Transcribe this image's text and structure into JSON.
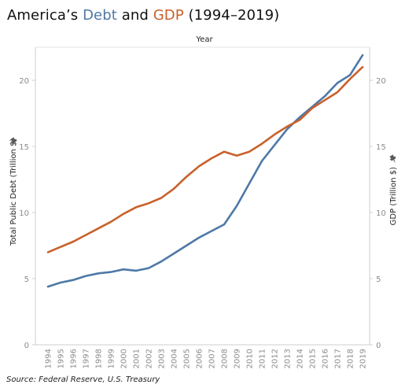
{
  "header": {
    "title_prefix": "America’s ",
    "title_debt": "Debt",
    "title_and": " and ",
    "title_gdp": "GDP",
    "title_suffix": " (1994–2019)"
  },
  "source": "Source: Federal Reserve, U.S. Treasury",
  "pin_icon": "pin-icon",
  "chart_data": {
    "type": "line",
    "top_xlabel": "Year",
    "ylabel_left": "Total Public Debt (Trillion $)",
    "ylabel_right": "GDP (Trillion $)",
    "ylim": [
      0,
      22.5
    ],
    "yticks": [
      0,
      5,
      10,
      15,
      20
    ],
    "grid": false,
    "x": [
      "1994",
      "1995",
      "1996",
      "1997",
      "1998",
      "1999",
      "2000",
      "2001",
      "2002",
      "2003",
      "2004",
      "2005",
      "2006",
      "2007",
      "2008",
      "2009",
      "2010",
      "2011",
      "2012",
      "2013",
      "2014",
      "2015",
      "2016",
      "2017",
      "2018",
      "2019"
    ],
    "series": [
      {
        "name": "Debt",
        "axis": "left",
        "color": "#4e79a7",
        "values": [
          4.4,
          4.7,
          4.9,
          5.2,
          5.4,
          5.5,
          5.7,
          5.6,
          5.8,
          6.3,
          6.9,
          7.5,
          8.1,
          8.6,
          9.1,
          10.5,
          12.2,
          13.9,
          15.1,
          16.3,
          17.2,
          18.0,
          18.8,
          19.8,
          20.4,
          21.9
        ]
      },
      {
        "name": "GDP",
        "axis": "right",
        "color": "#c8612b",
        "values": [
          7.0,
          7.4,
          7.8,
          8.3,
          8.8,
          9.3,
          9.9,
          10.4,
          10.7,
          11.1,
          11.8,
          12.7,
          13.5,
          14.1,
          14.6,
          14.3,
          14.6,
          15.2,
          15.9,
          16.5,
          17.0,
          17.9,
          18.5,
          19.1,
          20.1,
          21.0
        ]
      }
    ]
  }
}
